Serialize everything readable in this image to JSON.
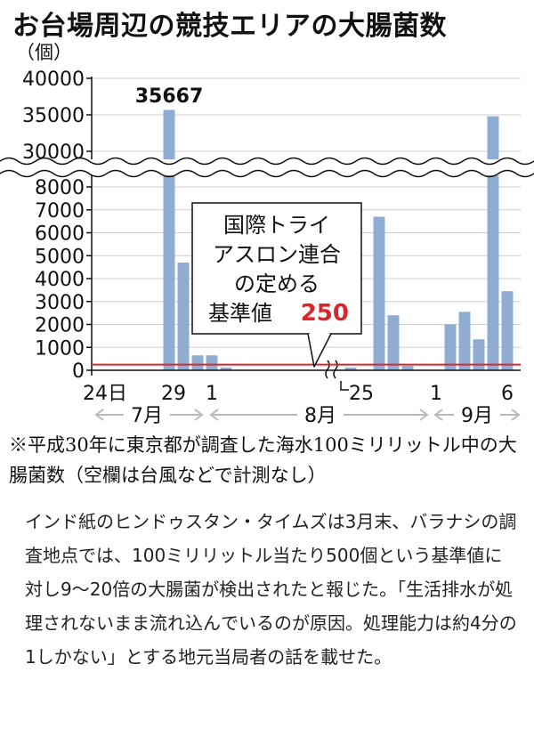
{
  "chart_data": {
    "type": "bar",
    "title": "お台場周辺の競技エリアの大腸菌数",
    "unit_label": "（個）",
    "y_ticks_upper": [
      30000,
      35000,
      40000
    ],
    "y_ticks_lower": [
      0,
      1000,
      2000,
      3000,
      4000,
      5000,
      6000,
      7000,
      8000
    ],
    "ylim_lower": [
      0,
      8500
    ],
    "ylim_upper": [
      29500,
      40000
    ],
    "bar_color": "#8fadd3",
    "standard_line_color": "#d9262c",
    "values": [
      {
        "date": "7-29",
        "value": 35667
      },
      {
        "date": "7-30",
        "value": 4700
      },
      {
        "date": "7-31",
        "value": 650
      },
      {
        "date": "8-1",
        "value": 650
      },
      {
        "date": "8-2",
        "value": 120
      },
      {
        "date": "8-24",
        "value": 120
      },
      {
        "date": "8-26",
        "value": 6700
      },
      {
        "date": "8-27",
        "value": 2400
      },
      {
        "date": "8-28",
        "value": 200
      },
      {
        "date": "9-2",
        "value": 2000
      },
      {
        "date": "9-3",
        "value": 2550
      },
      {
        "date": "9-4",
        "value": 1350
      },
      {
        "date": "9-5",
        "value": 34800
      },
      {
        "date": "9-6",
        "value": 3450
      }
    ],
    "peak_label": "35667",
    "standard": {
      "value": 250,
      "label_lines": [
        "国際トライ",
        "アスロン連合",
        "の定める",
        "基準値"
      ],
      "value_label": "250"
    },
    "x_tick_labels": [
      "24日",
      "29",
      "1",
      "25",
      "1",
      "6"
    ],
    "months": [
      "7月",
      "8月",
      "9月"
    ]
  },
  "footnote": "※平成30年に東京都が調査した海水100ミリリットル中の大腸菌数（空欄は台風などで計測なし）",
  "article": "インド紙のヒンドゥスタン・タイムズは3月末、バラナシの調査地点では、100ミリリットル当たり500個という基準値に対し9〜20倍の大腸菌が検出されたと報じた。「生活排水が処理されないまま流れ込んでいるのが原因。処理能力は約4分の1しかない」とする地元当局者の話を載せた。"
}
